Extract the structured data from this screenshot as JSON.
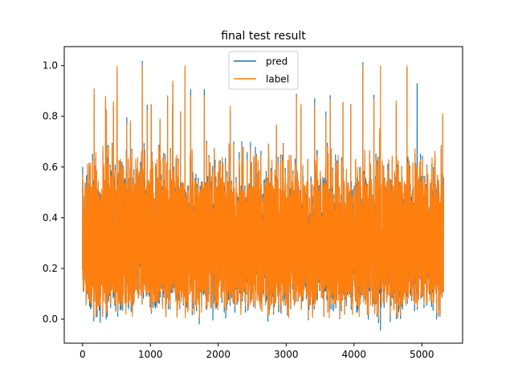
{
  "chart_data": {
    "type": "line",
    "title": "final test result",
    "xlabel": "",
    "ylabel": "",
    "xlim": [
      -270,
      5600
    ],
    "ylim": [
      -0.095,
      1.075
    ],
    "x_ticks": [
      0,
      1000,
      2000,
      3000,
      4000,
      5000
    ],
    "x_tick_labels": [
      "0",
      "1000",
      "2000",
      "3000",
      "4000",
      "5000"
    ],
    "y_ticks": [
      0.0,
      0.2,
      0.4,
      0.6,
      0.8,
      1.0
    ],
    "y_tick_labels": [
      "0.0",
      "0.2",
      "0.4",
      "0.6",
      "0.8",
      "1.0"
    ],
    "grid": false,
    "legend_position": "top-center",
    "n_points": 5320,
    "series": [
      {
        "name": "pred",
        "color": "#1f77b4",
        "description": "dense noisy signal, mostly 0.05-0.6, min about -0.045 near x=4390, max about 0.93 near x=4930",
        "min": -0.045,
        "max": 0.93
      },
      {
        "name": "label",
        "color": "#ff7f0e",
        "description": "dense noisy signal, mostly 0.0-0.6, several spikes reaching 1.0",
        "min": 0.0,
        "max": 1.0,
        "spike_x": [
          170,
          510,
          880,
          1330,
          1510,
          4130,
          4390,
          4780
        ],
        "spike_y": [
          0.91,
          1.0,
          1.0,
          0.94,
          1.0,
          1.0,
          1.0,
          1.0
        ]
      }
    ],
    "legend": {
      "entries": [
        "pred",
        "label"
      ]
    }
  }
}
